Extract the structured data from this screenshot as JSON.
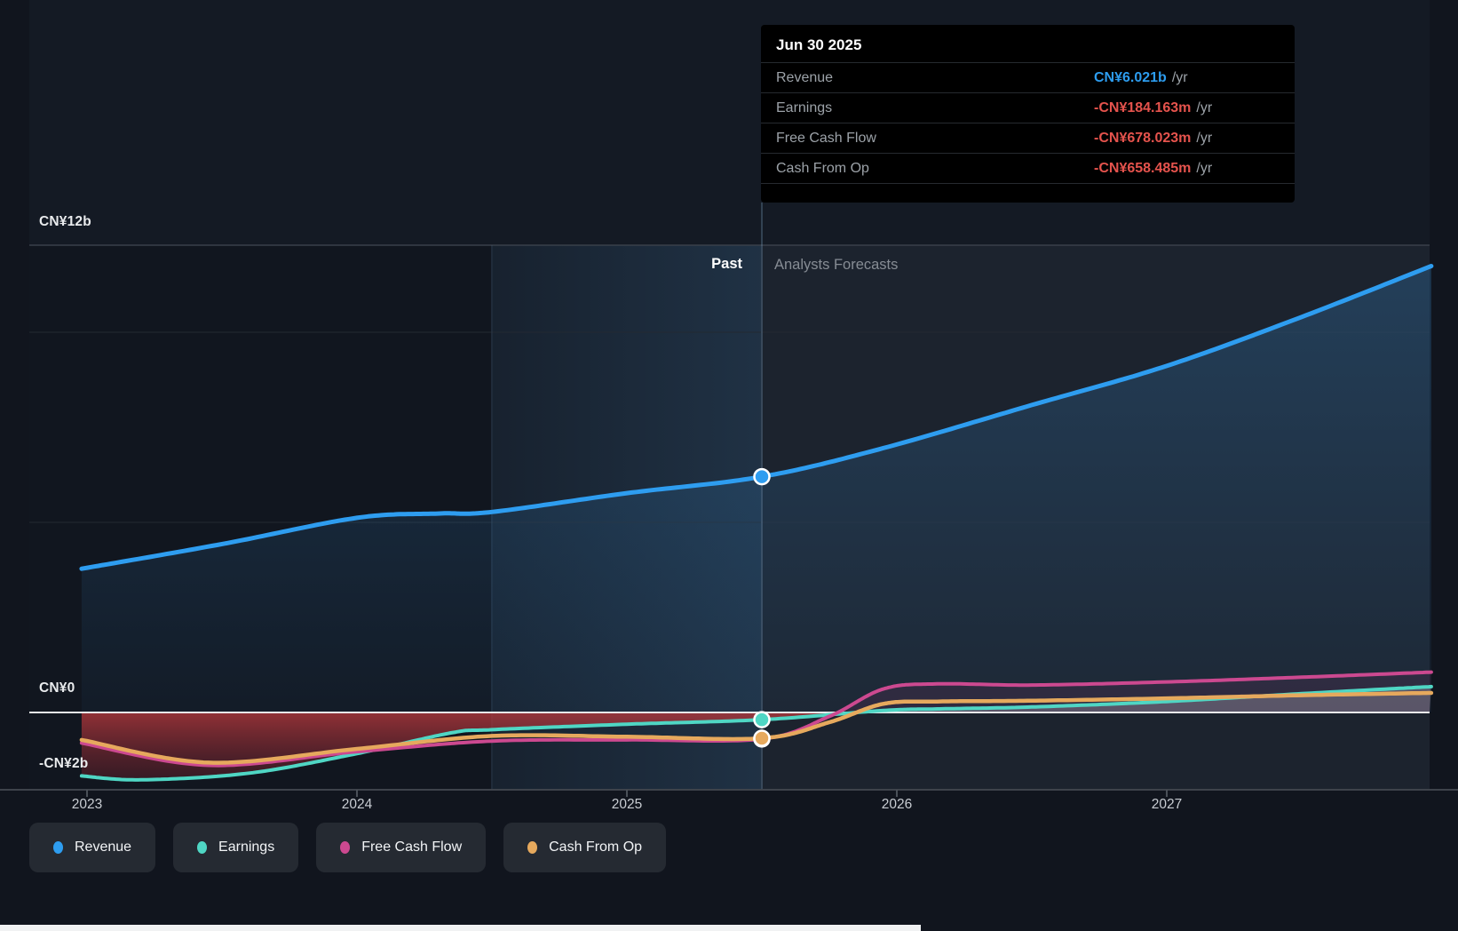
{
  "y_axis": {
    "top_label": "CN¥12b",
    "zero_label": "CN¥0",
    "bottom_label": "-CN¥2b"
  },
  "x_axis": {
    "ticks": [
      "2023",
      "2024",
      "2025",
      "2026",
      "2027"
    ]
  },
  "annotations": {
    "past_label": "Past",
    "forecast_label": "Analysts Forecasts"
  },
  "tooltip": {
    "title": "Jun 30 2025",
    "rows": [
      {
        "label": "Revenue",
        "value": "CN¥6.021b",
        "suffix": "/yr",
        "value_color": "#2D9CEE"
      },
      {
        "label": "Earnings",
        "value": "-CN¥184.163m",
        "suffix": "/yr",
        "value_color": "#E5534D"
      },
      {
        "label": "Free Cash Flow",
        "value": "-CN¥678.023m",
        "suffix": "/yr",
        "value_color": "#E5534D"
      },
      {
        "label": "Cash From Op",
        "value": "-CN¥658.485m",
        "suffix": "/yr",
        "value_color": "#E5534D"
      }
    ]
  },
  "legend": [
    {
      "label": "Revenue",
      "color": "#2E9DF0"
    },
    {
      "label": "Earnings",
      "color": "#4FD6C4"
    },
    {
      "label": "Free Cash Flow",
      "color": "#CC4990"
    },
    {
      "label": "Cash From Op",
      "color": "#E6A95D"
    }
  ],
  "chart_data": {
    "type": "line",
    "title": "Earnings and Revenue Growth forecast",
    "x_unit": "year",
    "y_unit": "CN¥ billions",
    "x_domain": [
      2022.98,
      2027.98
    ],
    "ylim": [
      -2,
      12
    ],
    "gridlines_y_values": [
      12,
      0,
      -2
    ],
    "divider_x": 2025.5,
    "divider_date": "Jun 30 2025",
    "past_region_end": 2025.5,
    "highlight_band": [
      2024.5,
      2025.5
    ],
    "legend_position": "bottom",
    "series": [
      {
        "name": "Revenue",
        "color": "#2E9DF0",
        "fill": "blue-gradient",
        "x": [
          2022.98,
          2023.5,
          2024.0,
          2024.3,
          2024.5,
          2025.0,
          2025.5,
          2025.95,
          2026.5,
          2027.0,
          2027.5,
          2027.98
        ],
        "values": [
          3.67,
          4.3,
          4.97,
          5.08,
          5.12,
          5.6,
          6.021,
          6.75,
          7.85,
          8.85,
          10.1,
          11.4
        ]
      },
      {
        "name": "Earnings",
        "color": "#4FD6C4",
        "fill": "red-below-zero",
        "x": [
          2022.98,
          2023.2,
          2023.6,
          2024.0,
          2024.35,
          2024.5,
          2025.0,
          2025.5,
          2025.95,
          2026.15,
          2026.5,
          2027.0,
          2027.5,
          2027.98
        ],
        "values": [
          -1.62,
          -1.72,
          -1.55,
          -1.05,
          -0.52,
          -0.44,
          -0.3,
          -0.184,
          0.05,
          0.09,
          0.14,
          0.28,
          0.48,
          0.66
        ]
      },
      {
        "name": "Free Cash Flow",
        "color": "#CC4990",
        "fill": "none",
        "x": [
          2022.98,
          2023.45,
          2024.0,
          2024.5,
          2025.0,
          2025.5,
          2025.75,
          2025.95,
          2026.15,
          2026.5,
          2027.0,
          2027.5,
          2027.98
        ],
        "values": [
          -0.78,
          -1.35,
          -1.0,
          -0.73,
          -0.7,
          -0.678,
          -0.1,
          0.6,
          0.73,
          0.7,
          0.78,
          0.9,
          1.03
        ]
      },
      {
        "name": "Cash From Op",
        "color": "#E6A95D",
        "fill": "none",
        "x": [
          2022.98,
          2023.45,
          2024.0,
          2024.5,
          2025.0,
          2025.5,
          2025.75,
          2025.95,
          2026.15,
          2026.5,
          2027.0,
          2027.5,
          2027.98
        ],
        "values": [
          -0.7,
          -1.28,
          -0.93,
          -0.6,
          -0.62,
          -0.658,
          -0.25,
          0.22,
          0.28,
          0.3,
          0.36,
          0.44,
          0.5
        ]
      }
    ],
    "markers_at_x": 2025.5,
    "marker_values": {
      "Revenue": 6.021,
      "Earnings": -0.184,
      "Free Cash Flow": -0.678,
      "Cash From Op": -0.658
    }
  }
}
